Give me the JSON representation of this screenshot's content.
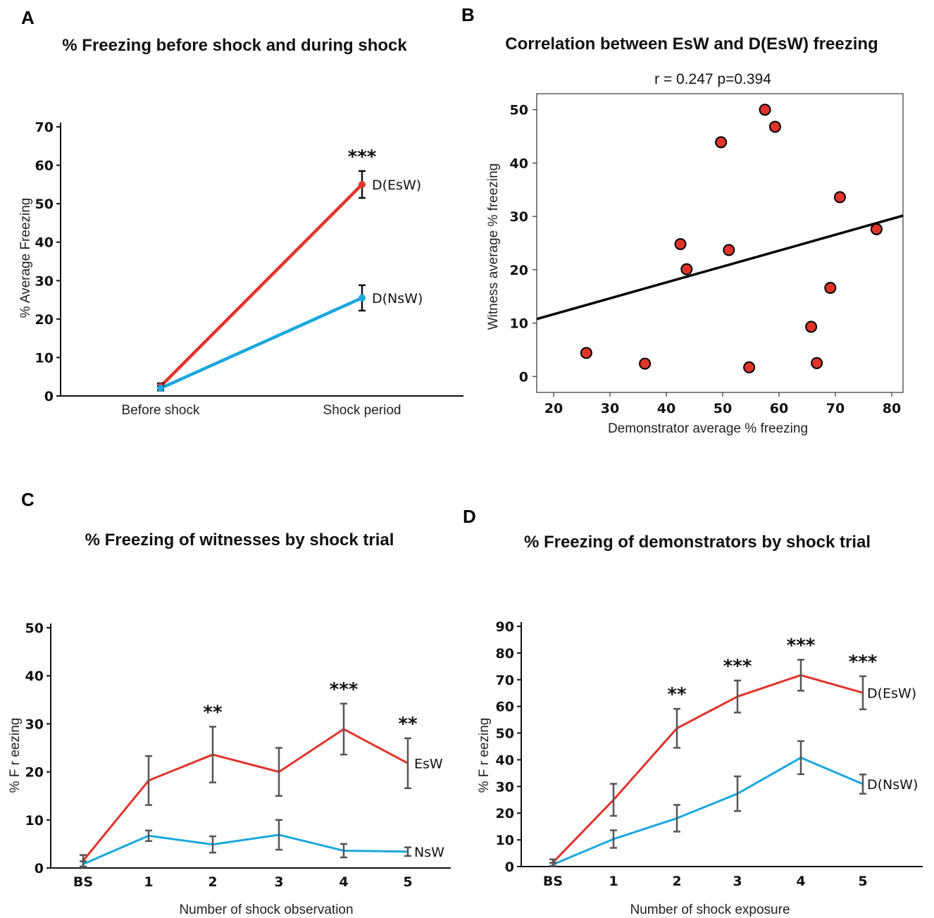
{
  "colors": {
    "esw": "#e0342b",
    "nsw": "#1aa7e0",
    "errorbar": "#555555",
    "text": "#111111"
  },
  "chart_data": [
    {
      "id": "A",
      "panel": "A",
      "type": "line",
      "title": "% Freezing before shock and during shock",
      "ylabel": "% Average Freezing",
      "xlabel": "",
      "categories": [
        "Before shock",
        "Shock period"
      ],
      "ylim": [
        0,
        70
      ],
      "yticks": [
        0,
        10,
        20,
        30,
        40,
        50,
        60,
        70
      ],
      "series": [
        {
          "name": "D(EsW)",
          "color": "#e0342b",
          "values": [
            2.5,
            55
          ],
          "errors": [
            0.8,
            3.5
          ]
        },
        {
          "name": "D(NsW)",
          "color": "#1aa7e0",
          "values": [
            2,
            25.5
          ],
          "errors": [
            0.6,
            3.3
          ]
        }
      ],
      "annotations": [
        {
          "index": 1,
          "text": "***"
        }
      ]
    },
    {
      "id": "B",
      "panel": "B",
      "type": "scatter",
      "title": "Correlation between EsW and D(EsW) freezing",
      "subtitle": "r = 0.247 p=0.394",
      "xlabel": "Demonstrator  average % freezing",
      "ylabel": "Witness average % freezing",
      "xlim": [
        17,
        82
      ],
      "ylim": [
        -3,
        53
      ],
      "xticks": [
        20,
        30,
        40,
        50,
        60,
        70,
        80
      ],
      "yticks": [
        0,
        10,
        20,
        30,
        40,
        50
      ],
      "points": [
        [
          25.8,
          4.4
        ],
        [
          36.2,
          2.4
        ],
        [
          42.5,
          24.8
        ],
        [
          43.6,
          20.1
        ],
        [
          49.7,
          43.9
        ],
        [
          51.1,
          23.7
        ],
        [
          54.7,
          1.7
        ],
        [
          57.5,
          50.0
        ],
        [
          59.3,
          46.8
        ],
        [
          65.7,
          9.3
        ],
        [
          66.7,
          2.5
        ],
        [
          69.1,
          16.6
        ],
        [
          70.8,
          33.6
        ],
        [
          77.3,
          27.6
        ]
      ],
      "fit": {
        "slope": 0.298,
        "intercept": 5.7
      }
    },
    {
      "id": "C",
      "panel": "C",
      "type": "line",
      "title": "% Freezing of witnesses by shock trial",
      "xlabel": "Number of shock observation",
      "ylabel": "%  F r eezing",
      "categories": [
        "BS",
        "1",
        "2",
        "3",
        "4",
        "5"
      ],
      "ylim": [
        0,
        50
      ],
      "yticks": [
        0,
        10,
        20,
        30,
        40,
        50
      ],
      "series": [
        {
          "name": "EsW",
          "color": "#e0342b",
          "values": [
            1.5,
            18.2,
            23.6,
            20.0,
            28.9,
            21.8
          ],
          "errors": [
            1.2,
            5.1,
            5.8,
            5.0,
            5.3,
            5.2
          ]
        },
        {
          "name": "NsW",
          "color": "#1aa7e0",
          "values": [
            0.8,
            6.7,
            4.9,
            6.9,
            3.6,
            3.4
          ],
          "errors": [
            0.6,
            1.1,
            1.7,
            3.1,
            1.4,
            0.9
          ]
        }
      ],
      "annotations": [
        {
          "index": 2,
          "text": "**"
        },
        {
          "index": 4,
          "text": "***"
        },
        {
          "index": 5,
          "text": "**"
        }
      ]
    },
    {
      "id": "D",
      "panel": "D",
      "type": "line",
      "title": "% Freezing of demonstrators  by shock trial",
      "xlabel": "Number of shock exposure",
      "ylabel": "%  F r eezing",
      "categories": [
        "BS",
        "1",
        "2",
        "3",
        "4",
        "5"
      ],
      "ylim": [
        0,
        90
      ],
      "yticks": [
        0,
        10,
        20,
        30,
        40,
        50,
        60,
        70,
        80,
        90
      ],
      "series": [
        {
          "name": "D(EsW)",
          "color": "#e0342b",
          "values": [
            1.5,
            25.0,
            51.8,
            63.7,
            71.7,
            65.1
          ],
          "errors": [
            1.2,
            6.0,
            7.3,
            6.0,
            5.8,
            6.2
          ]
        },
        {
          "name": "D(NsW)",
          "color": "#1aa7e0",
          "values": [
            0.8,
            10.3,
            18.1,
            27.3,
            40.8,
            30.9
          ],
          "errors": [
            0.6,
            3.3,
            5.0,
            6.5,
            6.2,
            3.6
          ]
        }
      ],
      "annotations": [
        {
          "index": 2,
          "text": "**"
        },
        {
          "index": 3,
          "text": "***"
        },
        {
          "index": 4,
          "text": "***"
        },
        {
          "index": 5,
          "text": "***"
        }
      ]
    }
  ]
}
